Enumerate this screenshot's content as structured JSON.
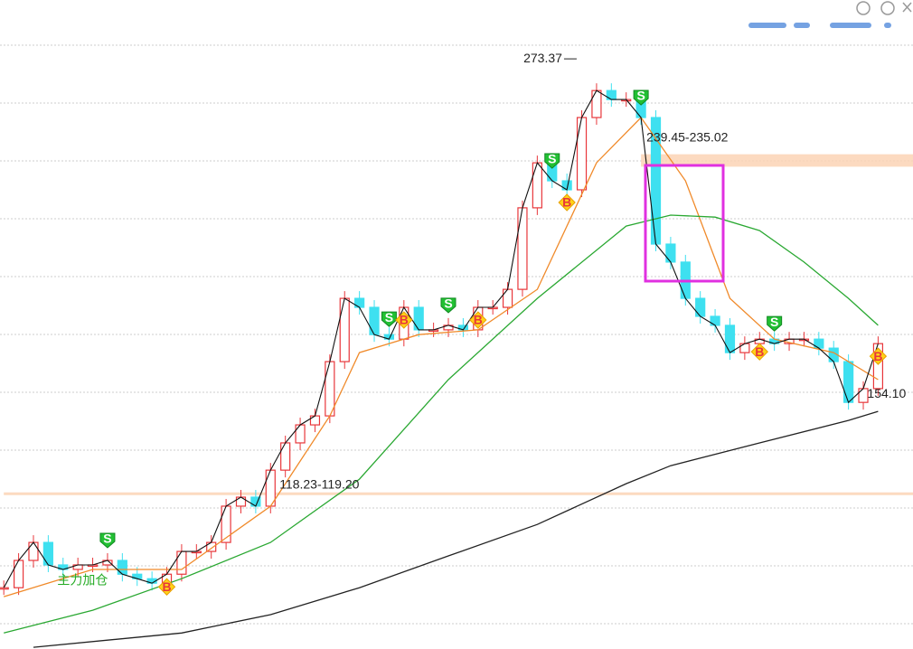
{
  "chart_data": {
    "type": "candlestick",
    "ylim": [
      63.5,
      294.3
    ],
    "xlim": [
      -0.5,
      60.5
    ],
    "grid": true,
    "up_color": "#e8363a",
    "down_color": "#3ee0f0",
    "closes": [
      85.3,
      95.0,
      101.4,
      93.4,
      91.8,
      93.4,
      93.4,
      95.0,
      90.1,
      88.5,
      86.9,
      90.1,
      98.2,
      98.2,
      101.4,
      114.3,
      117.5,
      114.3,
      127.1,
      136.8,
      143.2,
      146.4,
      165.7,
      188.2,
      185.0,
      175.3,
      173.7,
      185.0,
      177.0,
      177.0,
      178.6,
      177.0,
      185.0,
      185.0,
      191.4,
      220.4,
      236.4,
      230.0,
      226.8,
      252.5,
      262.1,
      258.9,
      258.9,
      252.5,
      207.5,
      201.1,
      188.2,
      181.8,
      178.6,
      168.9,
      172.1,
      173.7,
      172.1,
      173.7,
      173.7,
      170.5,
      165.7,
      151.2,
      156.1,
      172.1
    ],
    "lines": [
      {
        "color": "#f08a2a",
        "x": [
          0,
          6,
          12,
          18,
          22,
          24,
          28,
          32,
          36,
          40,
          43,
          46,
          49,
          52,
          56,
          59
        ],
        "values": [
          82.1,
          91.8,
          91.8,
          114.3,
          146.4,
          168.9,
          175.3,
          177.0,
          191.4,
          236.4,
          252.5,
          230.0,
          188.2,
          173.7,
          168.9,
          159.3
        ]
      },
      {
        "color": "#2aa832",
        "x": [
          0,
          6,
          12,
          18,
          24,
          30,
          36,
          42,
          45,
          48,
          51,
          54,
          57,
          59
        ],
        "values": [
          69.2,
          77.3,
          88.5,
          101.4,
          123.9,
          159.3,
          188.2,
          213.9,
          217.8,
          217.1,
          212.3,
          201.1,
          188.2,
          178.6
        ]
      },
      {
        "color": "#222222",
        "x": [
          2,
          12,
          18,
          24,
          30,
          36,
          42,
          45,
          51,
          57,
          59
        ],
        "values": [
          64.1,
          69.2,
          75.7,
          85.3,
          96.6,
          107.8,
          122.3,
          128.7,
          136.8,
          144.8,
          148.0
        ]
      }
    ],
    "peak": {
      "value": 273.37,
      "index": 40
    },
    "low": {
      "value": 154.1,
      "label": "154.10",
      "index": 59
    },
    "bands": [
      {
        "label": "239.45-235.02",
        "from": 235.02,
        "to": 239.45,
        "start": 43
      },
      {
        "label": "118.23-119.20",
        "from": 118.23,
        "to": 119.2,
        "start": 0
      }
    ],
    "note": {
      "label": "主力加仓",
      "index": 3
    },
    "signals": [
      {
        "label": "S",
        "index": 7
      },
      {
        "label": "B",
        "index": 11
      },
      {
        "label": "S",
        "index": 26
      },
      {
        "label": "B",
        "index": 27
      },
      {
        "label": "S",
        "index": 30
      },
      {
        "label": "B",
        "index": 32
      },
      {
        "label": "S",
        "index": 37
      },
      {
        "label": "B",
        "index": 38
      },
      {
        "label": "S",
        "index": 43
      },
      {
        "label": "B",
        "index": 51
      },
      {
        "label": "S",
        "index": 52
      },
      {
        "label": "B",
        "index": 59
      }
    ]
  }
}
